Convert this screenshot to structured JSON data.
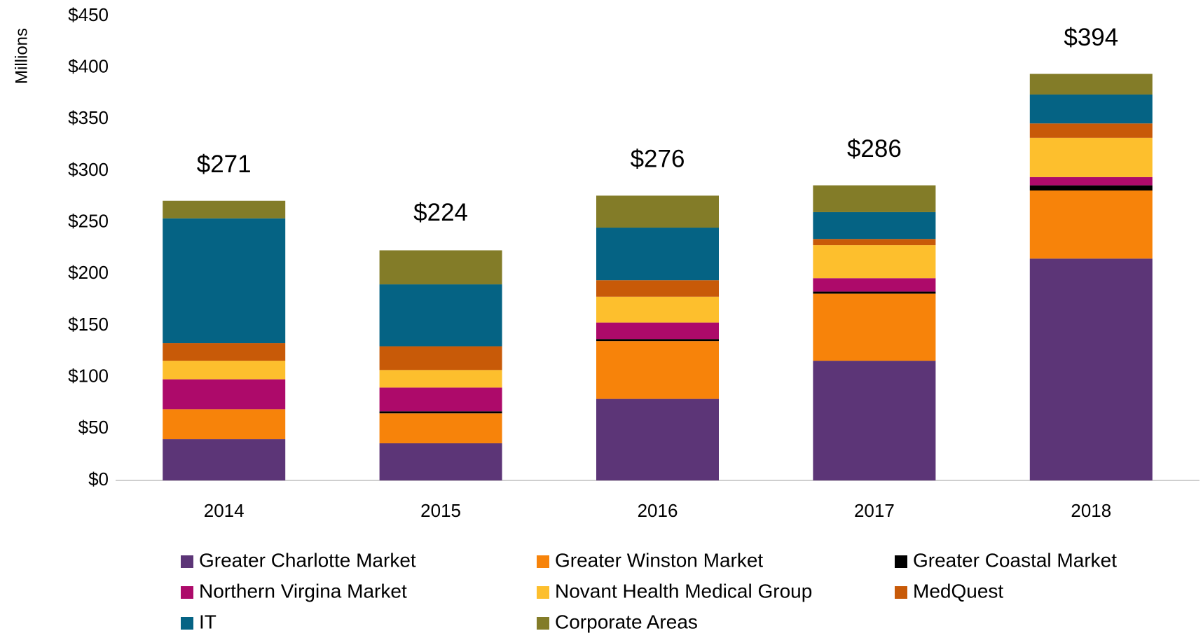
{
  "chart_data": {
    "type": "stacked_bar",
    "y_label": "Millions",
    "categories": [
      "2014",
      "2015",
      "2016",
      "2017",
      "2018"
    ],
    "series": [
      {
        "name": "Greater Charlotte Market",
        "color": "#5c3577",
        "values": [
          40,
          36,
          79,
          116,
          215
        ]
      },
      {
        "name": "Greater Winston Market",
        "color": "#f7830a",
        "values": [
          29,
          29,
          56,
          65,
          66
        ]
      },
      {
        "name": "Greater Coastal Market",
        "color": "#000000",
        "values": [
          0,
          2,
          2,
          2,
          5
        ]
      },
      {
        "name": "Northern Virgina Market",
        "color": "#ad0a6a",
        "values": [
          29,
          23,
          16,
          13,
          8
        ]
      },
      {
        "name": "Novant Health Medical Group",
        "color": "#fdbf2d",
        "values": [
          18,
          17,
          25,
          32,
          38
        ]
      },
      {
        "name": "MedQuest",
        "color": "#c85a08",
        "values": [
          17,
          23,
          16,
          6,
          14
        ]
      },
      {
        "name": "IT",
        "color": "#056384",
        "values": [
          121,
          60,
          51,
          26,
          28
        ]
      },
      {
        "name": "Corporate Areas",
        "color": "#837c28",
        "values": [
          17,
          33,
          31,
          26,
          20
        ]
      }
    ],
    "totals": {
      "values": [
        271,
        224,
        276,
        286,
        394
      ],
      "value_labels": [
        "$271",
        "$224",
        "$276",
        "$286",
        "$394"
      ]
    },
    "ylim": [
      0,
      450
    ],
    "yticks": [
      {
        "value": 0,
        "label": "$0"
      },
      {
        "value": 50,
        "label": "$50"
      },
      {
        "value": 100,
        "label": "$100"
      },
      {
        "value": 150,
        "label": "$150"
      },
      {
        "value": 200,
        "label": "$200"
      },
      {
        "value": 250,
        "label": "$250"
      },
      {
        "value": 300,
        "label": "$300"
      },
      {
        "value": 350,
        "label": "$350"
      },
      {
        "value": 400,
        "label": "$400"
      },
      {
        "value": 450,
        "label": "$450"
      }
    ],
    "legend": "bottom"
  }
}
